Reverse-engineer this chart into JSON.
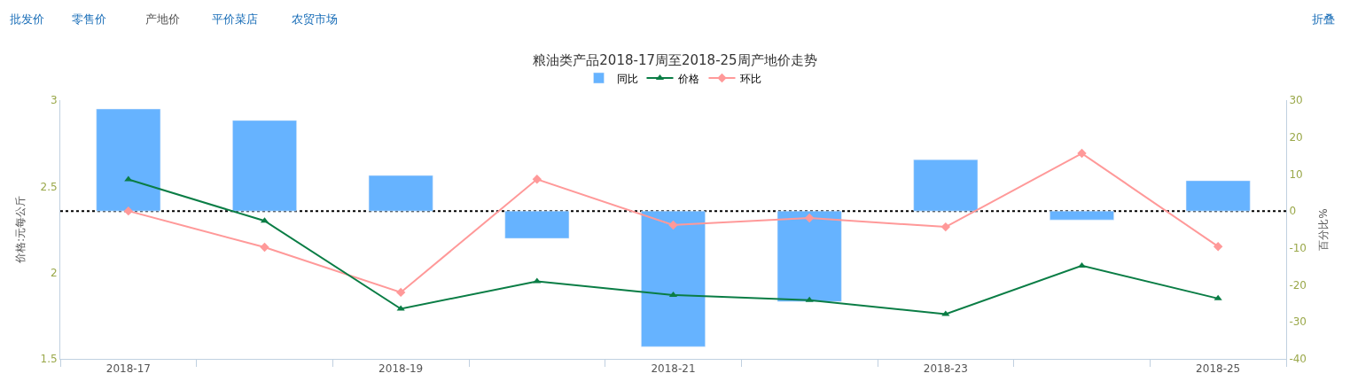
{
  "chart_data": {
    "type": "bar",
    "title": "粮油类产品2018-17周至2018-25周产地价走势",
    "categories": [
      "2018-17",
      null,
      "2018-19",
      null,
      "2018-21",
      null,
      "2018-23",
      null,
      "2018-25"
    ],
    "series": [
      {
        "name": "同比",
        "axis": "y2",
        "color": "#66b3ff",
        "values": [
          27.6,
          24.5,
          9.6,
          -7.4,
          -36.7,
          -24.5,
          13.9,
          -2.4,
          8.2
        ]
      },
      {
        "name": "价格",
        "type": "line",
        "color": "#0a7d45",
        "marker": "triangle",
        "values": [
          2.54,
          2.3,
          1.79,
          1.95,
          1.87,
          1.84,
          1.76,
          2.04,
          1.85
        ]
      },
      {
        "name": "环比",
        "type": "line",
        "axis": "y2",
        "color": "#ff9999",
        "marker": "diamond",
        "values": [
          0,
          -9.8,
          -22,
          8.6,
          -3.8,
          -1.9,
          -4.3,
          15.6,
          -9.6
        ]
      }
    ],
    "ylabel": "价格:元每公斤",
    "y2label": "百分比%",
    "ylim": [
      1.5,
      3
    ],
    "yticks": [
      1.5,
      2,
      2.5,
      3
    ],
    "y2lim": [
      -40,
      30
    ],
    "y2ticks": [
      -40,
      -30,
      -20,
      -10,
      0,
      10,
      20,
      30
    ],
    "ref_lines": [
      {
        "axis": "y2",
        "value": 0,
        "color": "#000000",
        "line_style": "dotted"
      }
    ],
    "grid": false,
    "legend": "top",
    "annotations": [
      "批发价",
      "零售价",
      "产地价",
      "平价菜店",
      "农贸市场",
      "折叠"
    ]
  }
}
